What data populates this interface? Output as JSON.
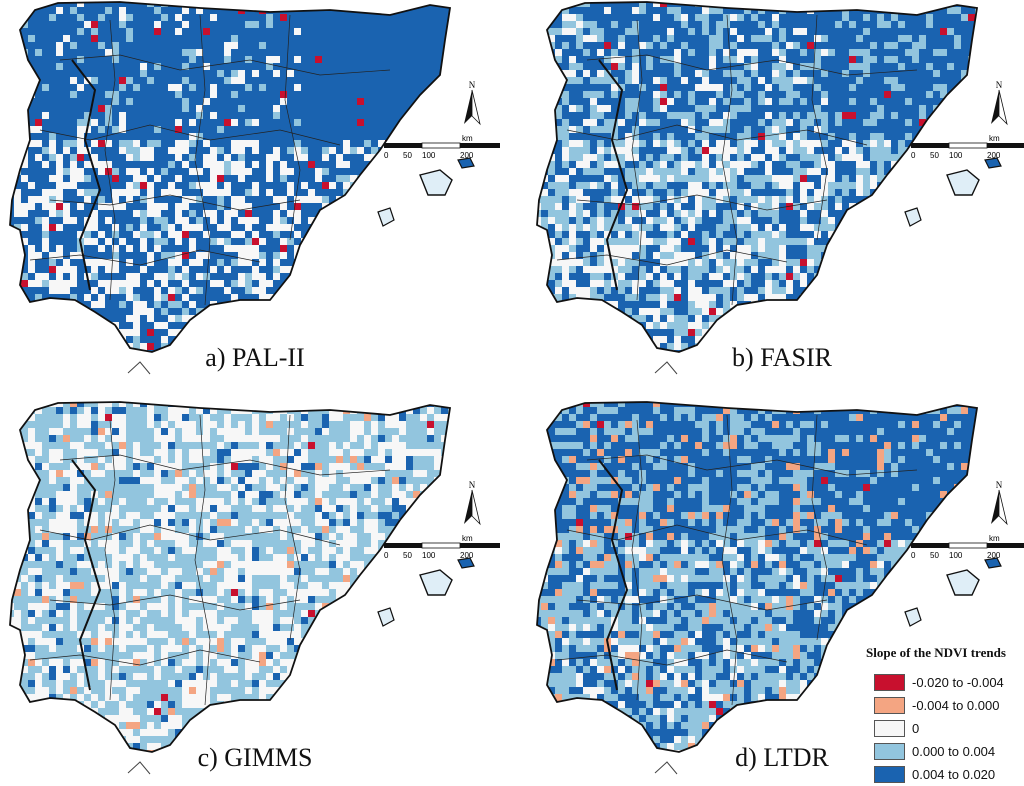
{
  "panels": [
    {
      "id": "a",
      "caption": "a) PAL-II",
      "dataset": "PAL-II",
      "mix": {
        "strong_pos": 0.5,
        "weak_pos": 0.1,
        "weak_neg": 0.0,
        "strong_neg": 0.015
      }
    },
    {
      "id": "b",
      "caption": "b) FASIR",
      "dataset": "FASIR",
      "mix": {
        "strong_pos": 0.35,
        "weak_pos": 0.3,
        "weak_neg": 0.0,
        "strong_neg": 0.01
      }
    },
    {
      "id": "c",
      "caption": "c) GIMMS",
      "dataset": "GIMMS",
      "mix": {
        "strong_pos": 0.06,
        "weak_pos": 0.5,
        "weak_neg": 0.03,
        "strong_neg": 0.003
      }
    },
    {
      "id": "d",
      "caption": "d) LTDR",
      "dataset": "LTDR",
      "mix": {
        "strong_pos": 0.35,
        "weak_pos": 0.45,
        "weak_neg": 0.06,
        "strong_neg": 0.01
      }
    }
  ],
  "scale_bar": {
    "ticks": [
      "0",
      "50",
      "100",
      "200"
    ],
    "unit": "km"
  },
  "north_label": "N",
  "legend": {
    "title": "Slope of the NDVI trends",
    "items": [
      {
        "label": "-0.020 to -0.004",
        "color": "#c8102e"
      },
      {
        "label": "-0.004 to 0.000",
        "color": "#f4a582"
      },
      {
        "label": "0",
        "color": "#f7f7f7"
      },
      {
        "label": "0.000 to 0.004",
        "color": "#92c5de"
      },
      {
        "label": "0.004 to 0.020",
        "color": "#1a63b0"
      }
    ]
  }
}
